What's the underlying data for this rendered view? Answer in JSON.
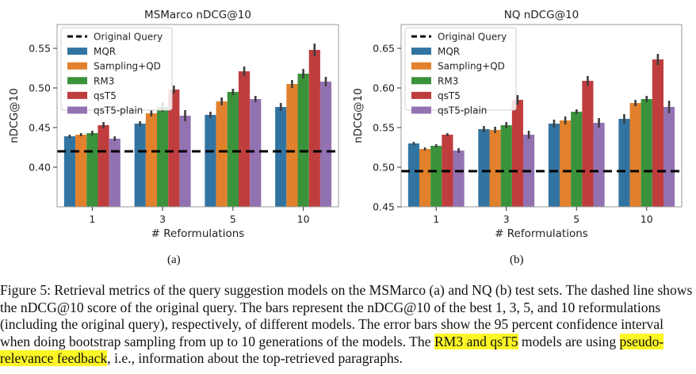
{
  "chart_data": [
    {
      "type": "bar",
      "title": "MSMarco nDCG@10",
      "xlabel": "# Reformulations",
      "ylabel": "nDCG@10",
      "ylim": [
        0.35,
        0.58
      ],
      "yticks": [
        0.4,
        0.45,
        0.5,
        0.55
      ],
      "ytick_labels": [
        "0.40",
        "0.45",
        "0.50",
        "0.55"
      ],
      "categories": [
        "1",
        "3",
        "5",
        "10"
      ],
      "baseline": {
        "name": "Original Query",
        "value": 0.42
      },
      "series": [
        {
          "name": "MQR",
          "color": "#3274a1",
          "values": [
            0.439,
            0.455,
            0.466,
            0.476
          ],
          "err": [
            0.002,
            0.003,
            0.004,
            0.005
          ]
        },
        {
          "name": "Sampling+QD",
          "color": "#e1812c",
          "values": [
            0.441,
            0.468,
            0.483,
            0.505
          ],
          "err": [
            0.002,
            0.004,
            0.005,
            0.005
          ]
        },
        {
          "name": "RM3",
          "color": "#3a923a",
          "values": [
            0.443,
            0.476,
            0.495,
            0.518
          ],
          "err": [
            0.003,
            0.006,
            0.004,
            0.006
          ]
        },
        {
          "name": "qsT5",
          "color": "#c03d3e",
          "values": [
            0.453,
            0.498,
            0.521,
            0.548
          ],
          "err": [
            0.004,
            0.005,
            0.006,
            0.008
          ]
        },
        {
          "name": "qsT5-plain",
          "color": "#9372b2",
          "values": [
            0.436,
            0.465,
            0.486,
            0.508
          ],
          "err": [
            0.003,
            0.007,
            0.004,
            0.006
          ]
        }
      ]
    },
    {
      "type": "bar",
      "title": "NQ nDCG@10",
      "xlabel": "# Reformulations",
      "ylabel": "nDCG@10",
      "ylim": [
        0.45,
        0.68
      ],
      "yticks": [
        0.45,
        0.5,
        0.55,
        0.6,
        0.65
      ],
      "ytick_labels": [
        "0.45",
        "0.50",
        "0.55",
        "0.60",
        "0.65"
      ],
      "categories": [
        "1",
        "3",
        "5",
        "10"
      ],
      "baseline": {
        "name": "Original Query",
        "value": 0.495
      },
      "series": [
        {
          "name": "MQR",
          "color": "#3274a1",
          "values": [
            0.53,
            0.548,
            0.555,
            0.561
          ],
          "err": [
            0.002,
            0.004,
            0.005,
            0.006
          ]
        },
        {
          "name": "Sampling+QD",
          "color": "#e1812c",
          "values": [
            0.523,
            0.547,
            0.559,
            0.581
          ],
          "err": [
            0.002,
            0.004,
            0.005,
            0.004
          ]
        },
        {
          "name": "RM3",
          "color": "#3a923a",
          "values": [
            0.527,
            0.553,
            0.57,
            0.586
          ],
          "err": [
            0.002,
            0.004,
            0.003,
            0.004
          ]
        },
        {
          "name": "qsT5",
          "color": "#c03d3e",
          "values": [
            0.541,
            0.585,
            0.609,
            0.636
          ],
          "err": [
            0.002,
            0.006,
            0.006,
            0.007
          ]
        },
        {
          "name": "qsT5-plain",
          "color": "#9372b2",
          "values": [
            0.521,
            0.541,
            0.556,
            0.576
          ],
          "err": [
            0.003,
            0.005,
            0.006,
            0.008
          ]
        }
      ]
    }
  ],
  "subfigure_labels": [
    "(a)",
    "(b)"
  ],
  "caption": {
    "part1": "Figure 5: Retrieval metrics of the query suggestion models on the MSMarco (a) and NQ (b) test sets. The dashed line shows the nDCG@10 score of the original query. The bars represent the nDCG@10 of the best 1, 3, 5, and 10 reformulations (including the original query), respectively, of different models. The error bars show the 95 percent confidence interval when doing bootstrap sampling from up to 10 generations of the models. The ",
    "highlight1": "RM3 and qsT5",
    "part2": " models are using ",
    "highlight2": "pseudo-relevance feedback",
    "part3": ", i.e., information about the top-retrieved paragraphs.",
    "highlight_color": "#fdf726"
  }
}
